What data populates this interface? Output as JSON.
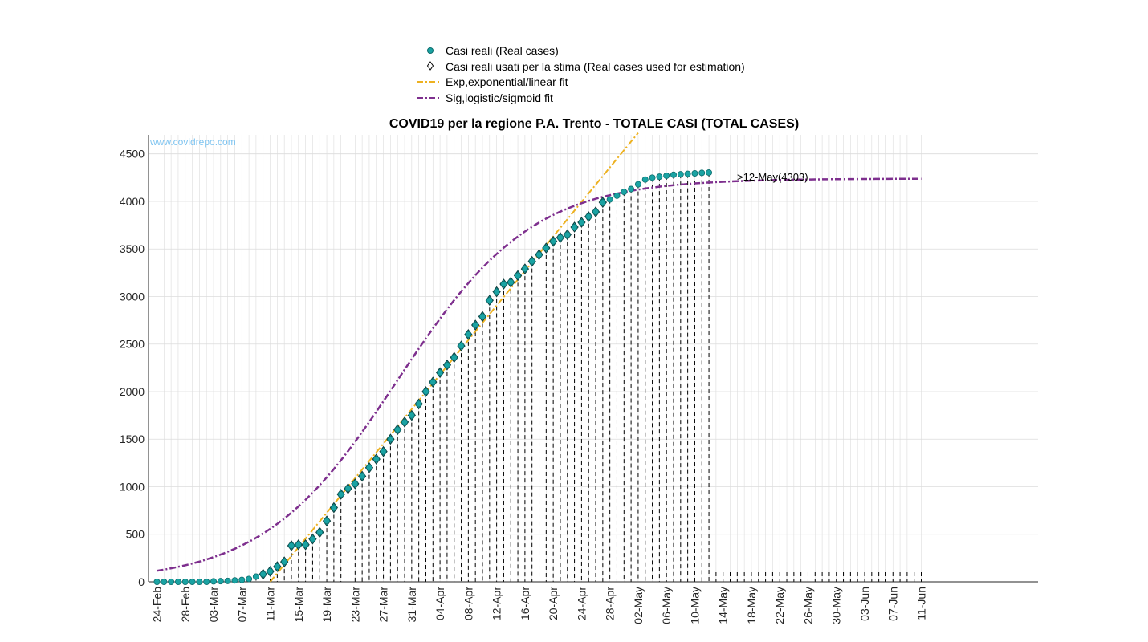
{
  "chart_data": {
    "type": "scatter",
    "title": "COVID19 per la regione P.A. Trento - TOTALE CASI (TOTAL CASES)",
    "watermark": "www.covidrepo.com",
    "xlabel": "",
    "ylabel": "",
    "x_start_date": "2020-02-24",
    "x_end_date": "2020-06-11",
    "ylim": [
      0,
      4700
    ],
    "yticks": [
      0,
      500,
      1000,
      1500,
      2000,
      2500,
      3000,
      3500,
      4000,
      4500
    ],
    "xtick_labels": [
      "24-Feb",
      "28-Feb",
      "03-Mar",
      "07-Mar",
      "11-Mar",
      "15-Mar",
      "19-Mar",
      "23-Mar",
      "27-Mar",
      "31-Mar",
      "04-Apr",
      "08-Apr",
      "12-Apr",
      "16-Apr",
      "20-Apr",
      "24-Apr",
      "28-Apr",
      "02-May",
      "06-May",
      "10-May",
      "14-May",
      "18-May",
      "22-May",
      "26-May",
      "30-May",
      "03-Jun",
      "07-Jun",
      "11-Jun"
    ],
    "grid": true,
    "legend_position": "top-center",
    "annotation": ">12-May(4303)",
    "colors": {
      "real": "#1aa3a3",
      "estimation": "#000000",
      "exp_fit": "#edb120",
      "sig_fit": "#7e2f8e"
    },
    "series": [
      {
        "name": "Casi reali (Real cases)",
        "marker": "circle",
        "dates": [
          "2020-02-24",
          "2020-02-25",
          "2020-02-26",
          "2020-02-27",
          "2020-02-28",
          "2020-02-29",
          "2020-03-01",
          "2020-03-02",
          "2020-03-03",
          "2020-03-04",
          "2020-03-05",
          "2020-03-06",
          "2020-03-07",
          "2020-03-08",
          "2020-03-09",
          "2020-03-10",
          "2020-03-11",
          "2020-03-12",
          "2020-03-13",
          "2020-03-14",
          "2020-03-15",
          "2020-03-16",
          "2020-03-17",
          "2020-03-18",
          "2020-03-19",
          "2020-03-20",
          "2020-03-21",
          "2020-03-22",
          "2020-03-23",
          "2020-03-24",
          "2020-03-25",
          "2020-03-26",
          "2020-03-27",
          "2020-03-28",
          "2020-03-29",
          "2020-03-30",
          "2020-03-31",
          "2020-04-01",
          "2020-04-02",
          "2020-04-03",
          "2020-04-04",
          "2020-04-05",
          "2020-04-06",
          "2020-04-07",
          "2020-04-08",
          "2020-04-09",
          "2020-04-10",
          "2020-04-11",
          "2020-04-12",
          "2020-04-13",
          "2020-04-14",
          "2020-04-15",
          "2020-04-16",
          "2020-04-17",
          "2020-04-18",
          "2020-04-19",
          "2020-04-20",
          "2020-04-21",
          "2020-04-22",
          "2020-04-23",
          "2020-04-24",
          "2020-04-25",
          "2020-04-26",
          "2020-04-27",
          "2020-04-28",
          "2020-04-29",
          "2020-04-30",
          "2020-05-01",
          "2020-05-02",
          "2020-05-03",
          "2020-05-04",
          "2020-05-05",
          "2020-05-06",
          "2020-05-07",
          "2020-05-08",
          "2020-05-09",
          "2020-05-10",
          "2020-05-11",
          "2020-05-12"
        ],
        "values": [
          0,
          0,
          0,
          0,
          0,
          0,
          0,
          0,
          5,
          7,
          10,
          15,
          20,
          30,
          55,
          80,
          110,
          160,
          210,
          380,
          390,
          390,
          450,
          520,
          640,
          780,
          920,
          980,
          1030,
          1110,
          1200,
          1290,
          1370,
          1500,
          1600,
          1680,
          1750,
          1870,
          2000,
          2100,
          2200,
          2280,
          2360,
          2480,
          2600,
          2700,
          2790,
          2960,
          3050,
          3130,
          3150,
          3220,
          3290,
          3370,
          3440,
          3510,
          3580,
          3620,
          3650,
          3730,
          3780,
          3840,
          3890,
          3990,
          4020,
          4060,
          4100,
          4130,
          4180,
          4230,
          4250,
          4260,
          4270,
          4280,
          4285,
          4290,
          4295,
          4300,
          4303
        ]
      },
      {
        "name": "Casi reali usati per la stima (Real cases used for estimation)",
        "marker": "diamond",
        "dates": [
          "2020-03-10",
          "2020-03-11",
          "2020-03-12",
          "2020-03-13",
          "2020-03-14",
          "2020-03-15",
          "2020-03-16",
          "2020-03-17",
          "2020-03-18",
          "2020-03-19",
          "2020-03-20",
          "2020-03-21",
          "2020-03-22",
          "2020-03-23",
          "2020-03-24",
          "2020-03-25",
          "2020-03-26",
          "2020-03-27",
          "2020-03-28",
          "2020-03-29",
          "2020-03-30",
          "2020-03-31",
          "2020-04-01",
          "2020-04-02",
          "2020-04-03",
          "2020-04-04",
          "2020-04-05",
          "2020-04-06",
          "2020-04-07",
          "2020-04-08",
          "2020-04-09",
          "2020-04-10",
          "2020-04-11",
          "2020-04-12",
          "2020-04-13",
          "2020-04-14",
          "2020-04-15",
          "2020-04-16",
          "2020-04-17",
          "2020-04-18",
          "2020-04-19",
          "2020-04-20",
          "2020-04-21",
          "2020-04-22",
          "2020-04-23",
          "2020-04-24",
          "2020-04-25",
          "2020-04-26",
          "2020-04-27"
        ],
        "values": [
          80,
          110,
          160,
          210,
          380,
          390,
          390,
          450,
          520,
          640,
          780,
          920,
          980,
          1030,
          1110,
          1200,
          1290,
          1370,
          1500,
          1600,
          1680,
          1750,
          1870,
          2000,
          2100,
          2200,
          2280,
          2360,
          2480,
          2600,
          2700,
          2790,
          2960,
          3050,
          3130,
          3150,
          3220,
          3290,
          3370,
          3440,
          3510,
          3580,
          3620,
          3650,
          3730,
          3780,
          3840,
          3890,
          3990
        ]
      },
      {
        "name": "Exp,exponential/linear fit",
        "line_style": "dash-dot",
        "dates": [
          "2020-03-11",
          "2020-05-02"
        ],
        "values": [
          0,
          4720
        ]
      },
      {
        "name": "Sig,logistic/sigmoid fit",
        "line_style": "dash-dot",
        "model": "logistic",
        "K": 4240,
        "r": 0.105,
        "midpoint_date": "2020-03-29",
        "dates": [
          "2020-02-24",
          "2020-06-11"
        ]
      }
    ]
  }
}
